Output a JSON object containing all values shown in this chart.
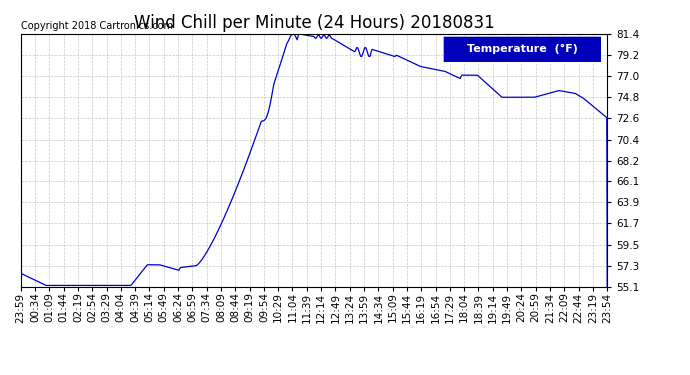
{
  "title": "Wind Chill per Minute (24 Hours) 20180831",
  "copyright": "Copyright 2018 Cartronics.com",
  "legend_label": "Temperature  (°F)",
  "line_color": "#0000cc",
  "background_color": "#ffffff",
  "plot_bg_color": "#ffffff",
  "grid_color": "#bbbbbb",
  "ylim": [
    55.1,
    81.4
  ],
  "yticks": [
    55.1,
    57.3,
    59.5,
    61.7,
    63.9,
    66.1,
    68.2,
    70.4,
    72.6,
    74.8,
    77.0,
    79.2,
    81.4
  ],
  "xtick_labels": [
    "23:59",
    "00:34",
    "01:09",
    "01:44",
    "02:19",
    "02:54",
    "03:29",
    "04:04",
    "04:39",
    "05:14",
    "05:49",
    "06:24",
    "06:59",
    "07:34",
    "08:09",
    "08:44",
    "09:19",
    "09:54",
    "10:29",
    "11:04",
    "11:39",
    "12:14",
    "12:49",
    "13:24",
    "13:59",
    "14:34",
    "15:09",
    "15:44",
    "16:19",
    "16:54",
    "17:29",
    "18:04",
    "18:39",
    "19:14",
    "19:49",
    "20:24",
    "20:59",
    "21:34",
    "22:09",
    "22:44",
    "23:19",
    "23:54"
  ],
  "title_fontsize": 12,
  "label_fontsize": 7.5,
  "copyright_fontsize": 7,
  "legend_fontsize": 8
}
